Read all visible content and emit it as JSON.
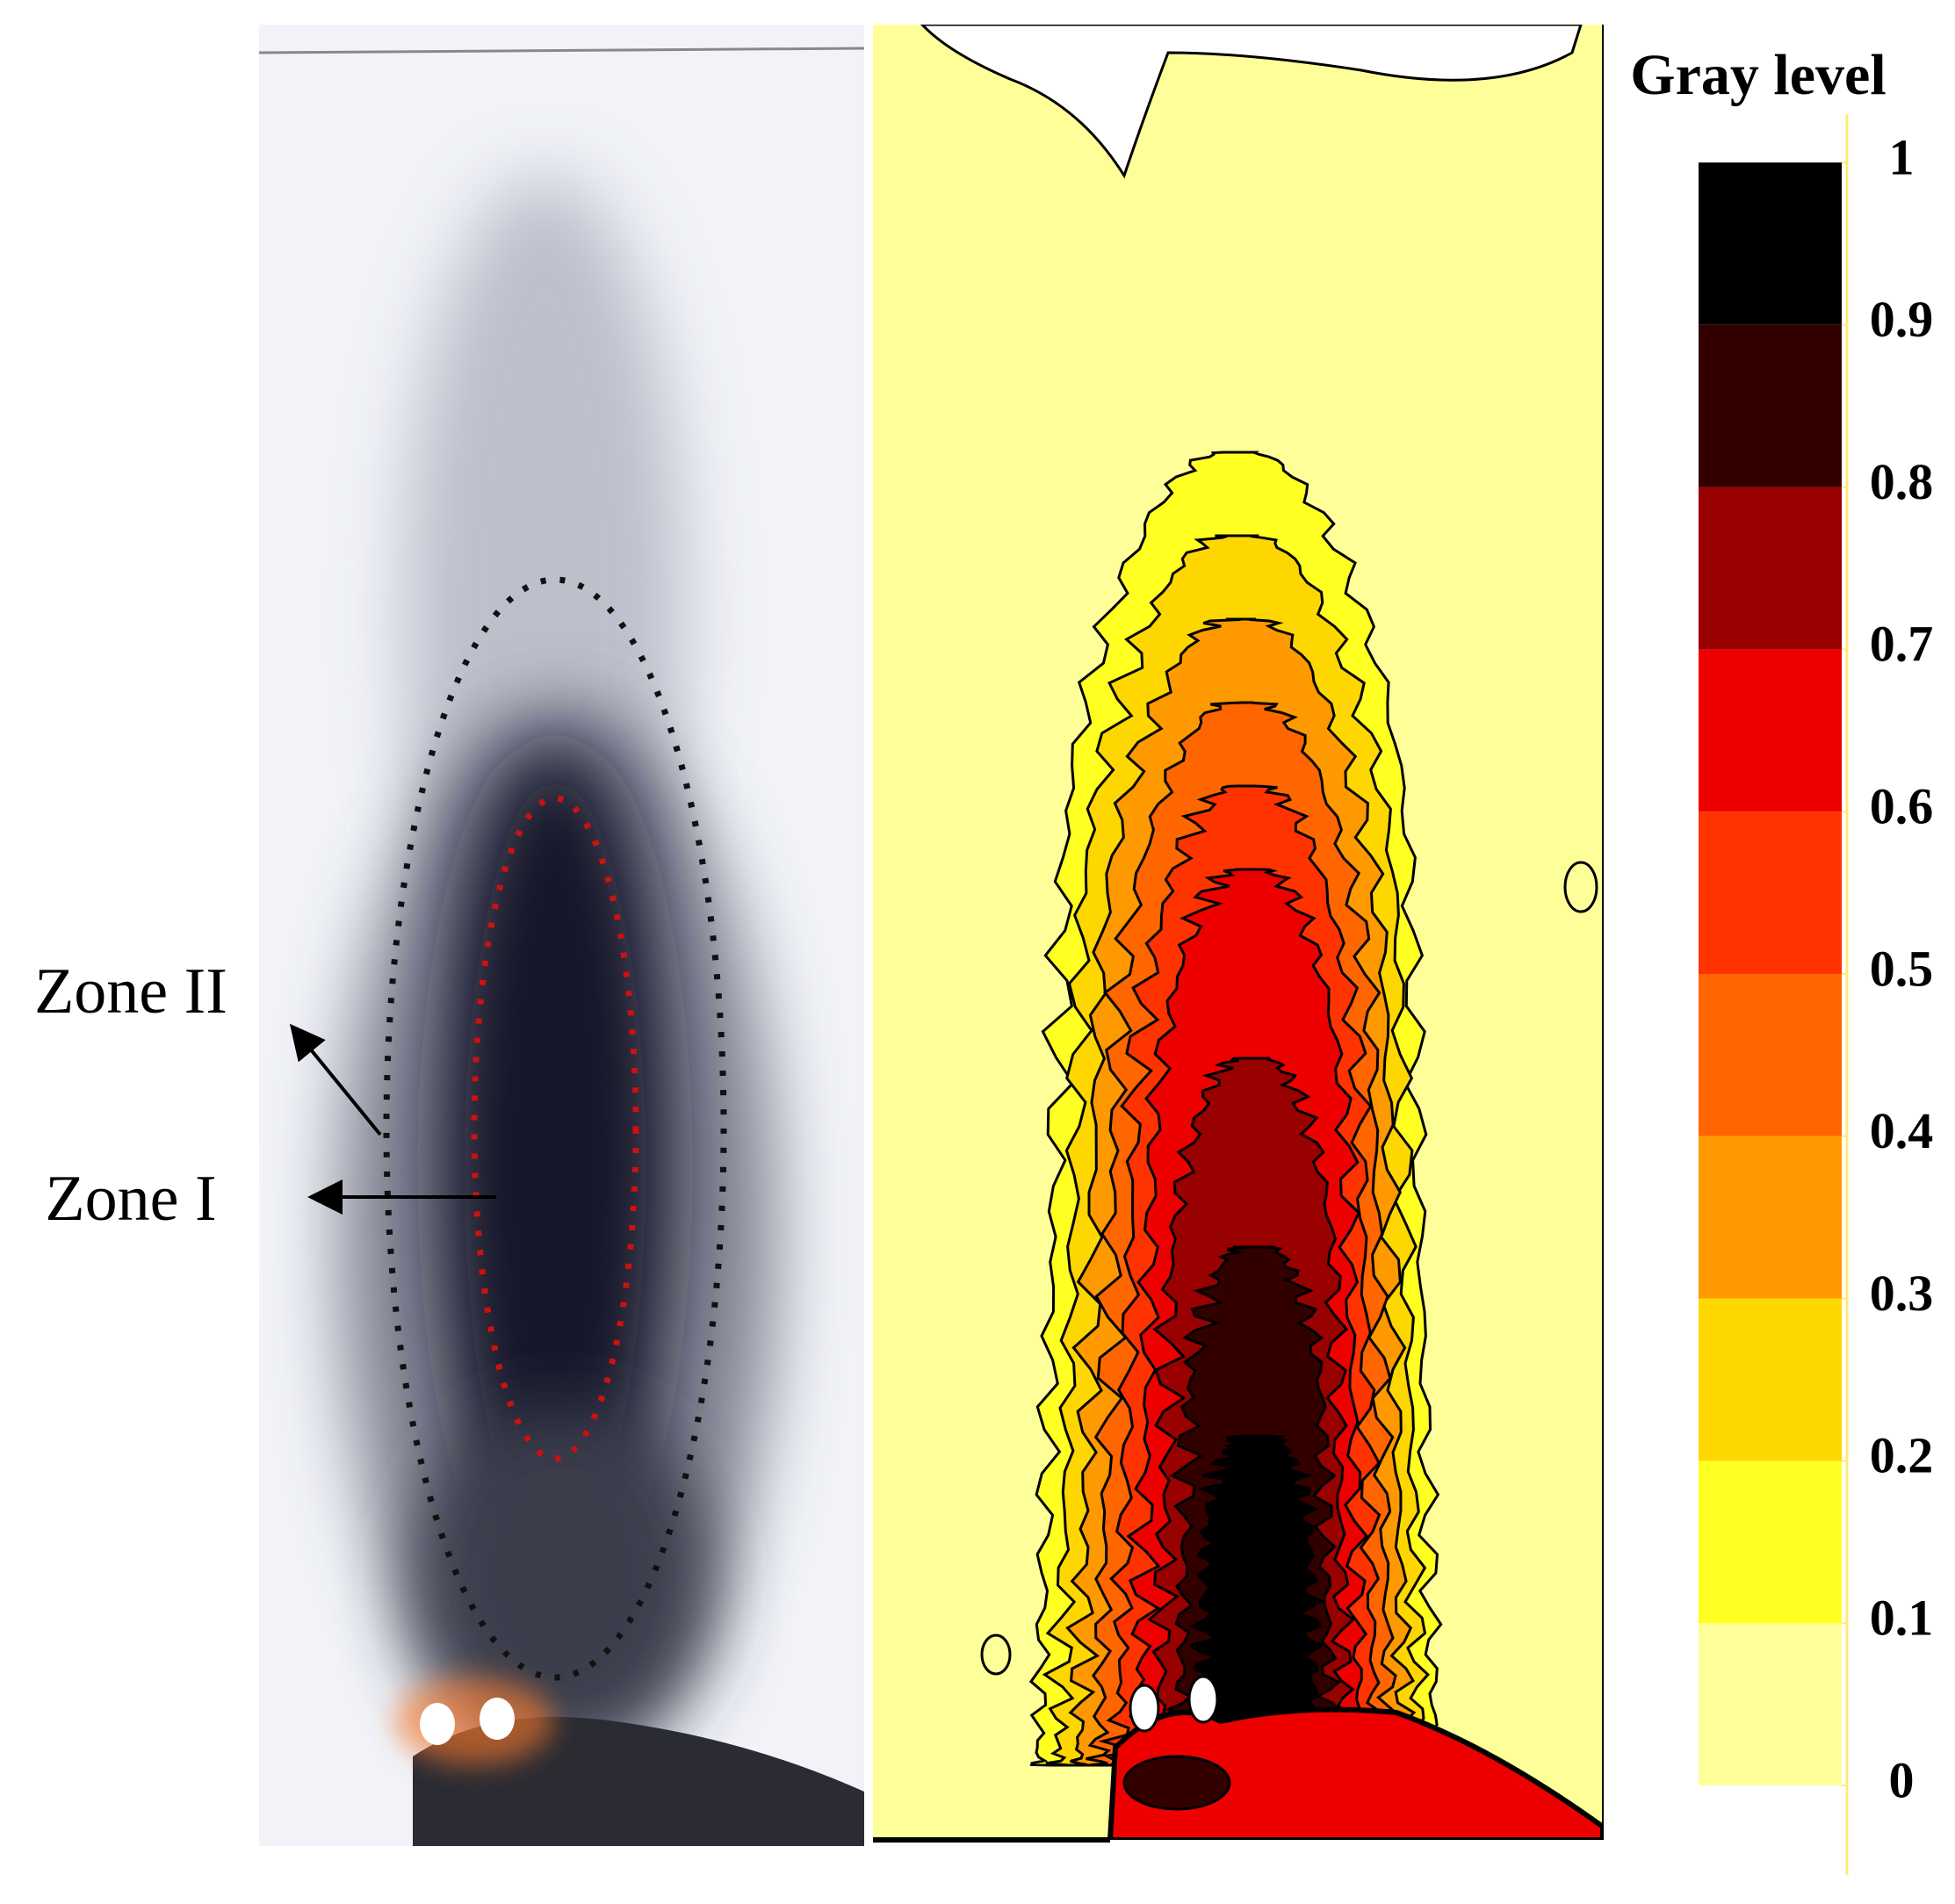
{
  "left_panel": {
    "labels": [
      "Zone II",
      "Zone I"
    ]
  },
  "colorbar": {
    "title": "Gray level",
    "ticks": [
      0,
      0.1,
      0.2,
      0.3,
      0.4,
      0.5,
      0.6,
      0.7,
      0.8,
      0.9,
      1
    ],
    "colors": [
      "#ffff99",
      "#ffff22",
      "#ffd700",
      "#ff9900",
      "#ff6600",
      "#ff3300",
      "#ee0000",
      "#990000",
      "#330000",
      "#000000"
    ]
  }
}
